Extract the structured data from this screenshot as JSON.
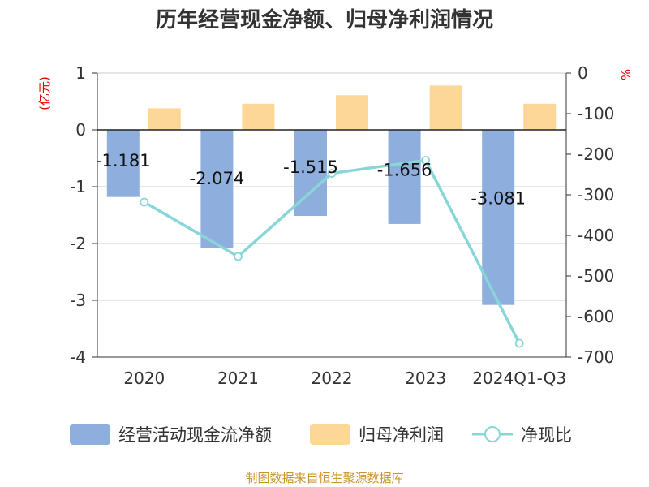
{
  "chart_data": {
    "title": "历年经营现金净额、归母净利润情况",
    "categories": [
      "2020",
      "2021",
      "2022",
      "2023",
      "2024Q1-Q3"
    ],
    "left_axis": {
      "unit": "(亿元)",
      "ylim": [
        -4,
        1
      ],
      "ticks": [
        1,
        0,
        -1,
        -2,
        -3,
        -4
      ]
    },
    "right_axis": {
      "unit": "%",
      "ylim": [
        -700,
        0
      ],
      "ticks": [
        0,
        -100,
        -200,
        -300,
        -400,
        -500,
        -600,
        -700
      ]
    },
    "series": [
      {
        "name": "经营活动现金流净额",
        "type": "bar",
        "axis": "left",
        "color": "#8eaedd",
        "values": [
          -1.181,
          -2.074,
          -1.515,
          -1.656,
          -3.081
        ],
        "labels": [
          "-1.181",
          "-2.074",
          "-1.515",
          "-1.656",
          "-3.081"
        ]
      },
      {
        "name": "归母净利润",
        "type": "bar",
        "axis": "left",
        "color": "#fdd797",
        "values": [
          0.38,
          0.46,
          0.61,
          0.78,
          0.46
        ]
      },
      {
        "name": "净现比",
        "type": "line",
        "axis": "right",
        "color": "#88d6d8",
        "values": [
          -318,
          -452,
          -247,
          -215,
          -666
        ]
      }
    ],
    "grid": true,
    "legend_position": "bottom"
  },
  "footer": {
    "source": "制图数据来自恒生聚源数据库"
  }
}
